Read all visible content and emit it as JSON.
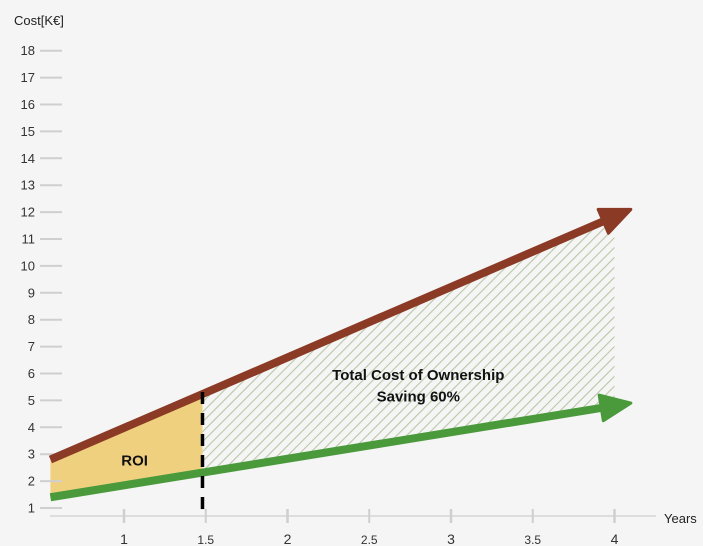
{
  "chart_data": {
    "type": "line",
    "xlabel": "Years",
    "ylabel": "Cost[K€]",
    "xlim": [
      0.55,
      4.3
    ],
    "ylim": [
      0.7,
      18.7
    ],
    "x_ticks": [
      {
        "value": 1,
        "label": "1",
        "major": true
      },
      {
        "value": 1.5,
        "label": "1.5",
        "major": false
      },
      {
        "value": 2,
        "label": "2",
        "major": true
      },
      {
        "value": 2.5,
        "label": "2.5",
        "major": false
      },
      {
        "value": 3,
        "label": "3",
        "major": true
      },
      {
        "value": 3.5,
        "label": "3.5",
        "major": false
      },
      {
        "value": 4,
        "label": "4",
        "major": true
      }
    ],
    "y_ticks": [
      1,
      2,
      3,
      4,
      5,
      6,
      7,
      8,
      9,
      10,
      11,
      12,
      13,
      14,
      15,
      16,
      17,
      18
    ],
    "grid": false,
    "series": [
      {
        "color": "#8b3a26",
        "x": [
          0.55,
          4.1
        ],
        "y": [
          2.8,
          12.1
        ]
      },
      {
        "color": "#4a9a3c",
        "x": [
          0.55,
          4.1
        ],
        "y": [
          1.4,
          4.9
        ]
      }
    ],
    "roi_region": {
      "x_start": 0.55,
      "x_end": 1.48,
      "color": "#efd07f",
      "label": "ROI"
    },
    "tco_region": {
      "x_start": 1.48,
      "x_end": 4.0,
      "hatch_color": "#b9c7a6"
    },
    "breakeven_x": 1.48,
    "annotations": [
      {
        "text": "Total Cost of Ownership",
        "x": 2.8,
        "y": 5.95
      },
      {
        "text": "Saving 60%",
        "x": 2.8,
        "y": 5.15
      }
    ]
  }
}
